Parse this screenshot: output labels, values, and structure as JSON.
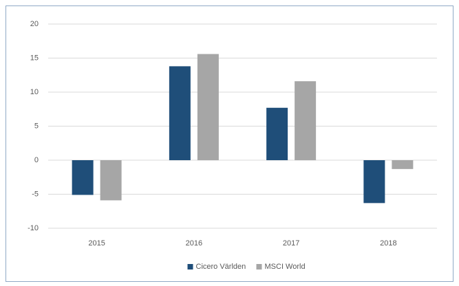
{
  "chart_data": {
    "type": "bar",
    "categories": [
      "2015",
      "2016",
      "2017",
      "2018"
    ],
    "series": [
      {
        "name": "Cicero Världen",
        "color": "#1f4e79",
        "values": [
          -5.1,
          13.8,
          7.7,
          -6.3
        ]
      },
      {
        "name": "MSCI World",
        "color": "#a6a6a6",
        "values": [
          -5.9,
          15.6,
          11.6,
          -1.3
        ]
      }
    ],
    "ylim": [
      -10,
      20
    ],
    "yticks": [
      -10,
      -5,
      0,
      5,
      10,
      15,
      20
    ],
    "grid": true,
    "legend": "bottom"
  }
}
